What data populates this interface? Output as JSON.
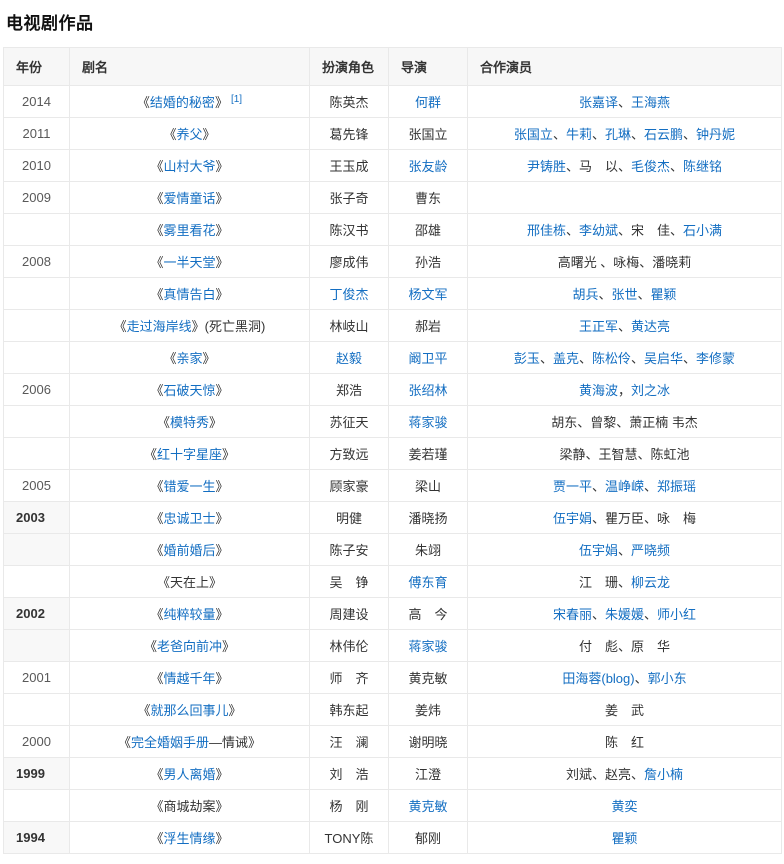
{
  "page_title": "电视剧作品",
  "link_color": "#136ec2",
  "table": {
    "headers": [
      "年份",
      "剧名",
      "扮演角色",
      "导演",
      "合作演员"
    ],
    "rows": [
      {
        "year": {
          "t": "2014",
          "hdr": false
        },
        "title": [
          {
            "t": "《"
          },
          {
            "t": "结婚的秘密",
            "l": 1
          },
          {
            "t": "》"
          },
          {
            "t": "[1]",
            "l": 1,
            "s": 1
          }
        ],
        "role": [
          {
            "t": "陈英杰"
          }
        ],
        "director": [
          {
            "t": "何群",
            "l": 1
          }
        ],
        "costars": [
          {
            "t": "张嘉译",
            "l": 1
          },
          {
            "t": "、"
          },
          {
            "t": "王海燕",
            "l": 1
          }
        ]
      },
      {
        "year": {
          "t": "2011",
          "hdr": false
        },
        "title": [
          {
            "t": "《"
          },
          {
            "t": "养父",
            "l": 1
          },
          {
            "t": "》"
          }
        ],
        "role": [
          {
            "t": "葛先锋"
          }
        ],
        "director": [
          {
            "t": "张国立"
          }
        ],
        "costars": [
          {
            "t": "张国立",
            "l": 1
          },
          {
            "t": "、"
          },
          {
            "t": "牛莉",
            "l": 1
          },
          {
            "t": "、"
          },
          {
            "t": "孔琳",
            "l": 1
          },
          {
            "t": "、"
          },
          {
            "t": "石云鹏",
            "l": 1
          },
          {
            "t": "、"
          },
          {
            "t": "钟丹妮",
            "l": 1
          }
        ]
      },
      {
        "year": {
          "t": "2010",
          "hdr": false
        },
        "title": [
          {
            "t": "《"
          },
          {
            "t": "山村大爷",
            "l": 1
          },
          {
            "t": "》"
          }
        ],
        "role": [
          {
            "t": "王玉成"
          }
        ],
        "director": [
          {
            "t": "张友龄",
            "l": 1
          }
        ],
        "costars": [
          {
            "t": "尹铸胜",
            "l": 1
          },
          {
            "t": "、马　以、"
          },
          {
            "t": "毛俊杰",
            "l": 1
          },
          {
            "t": "、"
          },
          {
            "t": "陈继铭",
            "l": 1
          }
        ]
      },
      {
        "year": {
          "t": "2009",
          "hdr": false
        },
        "title": [
          {
            "t": "《"
          },
          {
            "t": "爱情童话",
            "l": 1
          },
          {
            "t": "》"
          }
        ],
        "role": [
          {
            "t": "张子奇"
          }
        ],
        "director": [
          {
            "t": "曹东"
          }
        ],
        "costars": []
      },
      {
        "year": {
          "t": "",
          "hdr": false
        },
        "title": [
          {
            "t": "《"
          },
          {
            "t": "雾里看花",
            "l": 1
          },
          {
            "t": "》"
          }
        ],
        "role": [
          {
            "t": "陈汉书"
          }
        ],
        "director": [
          {
            "t": "邵雄"
          }
        ],
        "costars": [
          {
            "t": "邢佳栋",
            "l": 1
          },
          {
            "t": "、"
          },
          {
            "t": "李幼斌",
            "l": 1
          },
          {
            "t": "、宋　佳、"
          },
          {
            "t": "石小满",
            "l": 1
          }
        ]
      },
      {
        "year": {
          "t": "2008",
          "hdr": false
        },
        "title": [
          {
            "t": "《"
          },
          {
            "t": "一半天堂",
            "l": 1
          },
          {
            "t": "》"
          }
        ],
        "role": [
          {
            "t": "廖成伟"
          }
        ],
        "director": [
          {
            "t": "孙浩"
          }
        ],
        "costars": [
          {
            "t": "高曙光 、咏梅、潘晓莉"
          }
        ]
      },
      {
        "year": {
          "t": "",
          "hdr": false
        },
        "title": [
          {
            "t": "《"
          },
          {
            "t": "真情告白",
            "l": 1
          },
          {
            "t": "》"
          }
        ],
        "role": [
          {
            "t": "丁俊杰",
            "l": 1
          }
        ],
        "director": [
          {
            "t": "杨文军",
            "l": 1
          }
        ],
        "costars": [
          {
            "t": "胡兵",
            "l": 1
          },
          {
            "t": "、"
          },
          {
            "t": "张世",
            "l": 1
          },
          {
            "t": "、"
          },
          {
            "t": "瞿颖",
            "l": 1
          }
        ]
      },
      {
        "year": {
          "t": "",
          "hdr": false
        },
        "title": [
          {
            "t": "《"
          },
          {
            "t": "走过海岸线",
            "l": 1
          },
          {
            "t": "》(死亡黑洞)"
          }
        ],
        "role": [
          {
            "t": "林岐山"
          }
        ],
        "director": [
          {
            "t": "郝岩"
          }
        ],
        "costars": [
          {
            "t": "王正军",
            "l": 1
          },
          {
            "t": "、"
          },
          {
            "t": "黄达亮",
            "l": 1
          }
        ]
      },
      {
        "year": {
          "t": "",
          "hdr": false
        },
        "title": [
          {
            "t": "《"
          },
          {
            "t": "亲家",
            "l": 1
          },
          {
            "t": "》"
          }
        ],
        "role": [
          {
            "t": "赵毅",
            "l": 1
          }
        ],
        "director": [
          {
            "t": "阚卫平",
            "l": 1
          }
        ],
        "costars": [
          {
            "t": "彭玉",
            "l": 1
          },
          {
            "t": "、"
          },
          {
            "t": "盖克",
            "l": 1
          },
          {
            "t": "、"
          },
          {
            "t": "陈松伶",
            "l": 1
          },
          {
            "t": "、"
          },
          {
            "t": "吴启华",
            "l": 1
          },
          {
            "t": "、"
          },
          {
            "t": "李修蒙",
            "l": 1
          }
        ]
      },
      {
        "year": {
          "t": "2006",
          "hdr": false
        },
        "title": [
          {
            "t": "《"
          },
          {
            "t": "石破天惊",
            "l": 1
          },
          {
            "t": "》"
          }
        ],
        "role": [
          {
            "t": "郑浩"
          }
        ],
        "director": [
          {
            "t": "张绍林",
            "l": 1
          }
        ],
        "costars": [
          {
            "t": "黄海波",
            "l": 1
          },
          {
            "t": "，"
          },
          {
            "t": "刘之冰",
            "l": 1
          }
        ]
      },
      {
        "year": {
          "t": "",
          "hdr": false
        },
        "title": [
          {
            "t": "《"
          },
          {
            "t": "模特秀",
            "l": 1
          },
          {
            "t": "》"
          }
        ],
        "role": [
          {
            "t": "苏征天"
          }
        ],
        "director": [
          {
            "t": "蒋家骏",
            "l": 1
          }
        ],
        "costars": [
          {
            "t": "胡东、曾黎、萧正楠 韦杰"
          }
        ]
      },
      {
        "year": {
          "t": "",
          "hdr": false
        },
        "title": [
          {
            "t": "《"
          },
          {
            "t": "红十字星座",
            "l": 1
          },
          {
            "t": "》"
          }
        ],
        "role": [
          {
            "t": "方致远"
          }
        ],
        "director": [
          {
            "t": "姜若瑾"
          }
        ],
        "costars": [
          {
            "t": "梁静、王智慧、陈虹池"
          }
        ]
      },
      {
        "year": {
          "t": "2005",
          "hdr": false
        },
        "title": [
          {
            "t": "《"
          },
          {
            "t": "错爱一生",
            "l": 1
          },
          {
            "t": "》"
          }
        ],
        "role": [
          {
            "t": "顾家豪"
          }
        ],
        "director": [
          {
            "t": "梁山"
          }
        ],
        "costars": [
          {
            "t": "贾一平",
            "l": 1
          },
          {
            "t": "、"
          },
          {
            "t": "温峥嵘",
            "l": 1
          },
          {
            "t": "、"
          },
          {
            "t": "郑振瑶",
            "l": 1
          }
        ]
      },
      {
        "year": {
          "t": "2003",
          "hdr": true
        },
        "title": [
          {
            "t": "《"
          },
          {
            "t": "忠诚卫士",
            "l": 1
          },
          {
            "t": "》"
          }
        ],
        "role": [
          {
            "t": "明健"
          }
        ],
        "director": [
          {
            "t": "潘晓扬"
          }
        ],
        "costars": [
          {
            "t": "伍宇娟",
            "l": 1
          },
          {
            "t": "、瞿万臣、咏　梅"
          }
        ]
      },
      {
        "year": {
          "t": "",
          "hdr": true
        },
        "title": [
          {
            "t": "《"
          },
          {
            "t": "婚前婚后",
            "l": 1
          },
          {
            "t": "》"
          }
        ],
        "role": [
          {
            "t": "陈子安"
          }
        ],
        "director": [
          {
            "t": "朱翊"
          }
        ],
        "costars": [
          {
            "t": "伍宇娟",
            "l": 1
          },
          {
            "t": "、"
          },
          {
            "t": "严晓频",
            "l": 1
          }
        ]
      },
      {
        "year": {
          "t": "",
          "hdr": false
        },
        "title": [
          {
            "t": "《天在上》"
          }
        ],
        "role": [
          {
            "t": "吴　铮"
          }
        ],
        "director": [
          {
            "t": "傅东育",
            "l": 1
          }
        ],
        "costars": [
          {
            "t": "江　珊、"
          },
          {
            "t": "柳云龙",
            "l": 1
          }
        ]
      },
      {
        "year": {
          "t": "2002",
          "hdr": true
        },
        "title": [
          {
            "t": "《"
          },
          {
            "t": "纯粹较量",
            "l": 1
          },
          {
            "t": "》"
          }
        ],
        "role": [
          {
            "t": "周建设"
          }
        ],
        "director": [
          {
            "t": "高　今"
          }
        ],
        "costars": [
          {
            "t": "宋春丽",
            "l": 1
          },
          {
            "t": "、"
          },
          {
            "t": "朱媛媛",
            "l": 1
          },
          {
            "t": "、"
          },
          {
            "t": "师小红",
            "l": 1
          }
        ]
      },
      {
        "year": {
          "t": "",
          "hdr": true
        },
        "title": [
          {
            "t": "《"
          },
          {
            "t": "老爸向前冲",
            "l": 1
          },
          {
            "t": "》"
          }
        ],
        "role": [
          {
            "t": "林伟伦"
          }
        ],
        "director": [
          {
            "t": "蒋家骏",
            "l": 1
          }
        ],
        "costars": [
          {
            "t": "付　彪、原　华"
          }
        ]
      },
      {
        "year": {
          "t": "2001",
          "hdr": false
        },
        "title": [
          {
            "t": "《"
          },
          {
            "t": "情越千年",
            "l": 1
          },
          {
            "t": "》"
          }
        ],
        "role": [
          {
            "t": "师　齐"
          }
        ],
        "director": [
          {
            "t": "黄克敏"
          }
        ],
        "costars": [
          {
            "t": "田海蓉(blog)",
            "l": 1
          },
          {
            "t": "、"
          },
          {
            "t": "郭小东",
            "l": 1
          }
        ]
      },
      {
        "year": {
          "t": "",
          "hdr": false
        },
        "title": [
          {
            "t": "《"
          },
          {
            "t": "就那么回事儿",
            "l": 1
          },
          {
            "t": "》"
          }
        ],
        "role": [
          {
            "t": "韩东起"
          }
        ],
        "director": [
          {
            "t": "姜炜"
          }
        ],
        "costars": [
          {
            "t": "姜　武"
          }
        ]
      },
      {
        "year": {
          "t": "2000",
          "hdr": false
        },
        "title": [
          {
            "t": "《"
          },
          {
            "t": "完全婚姻手册",
            "l": 1
          },
          {
            "t": "—情诫》"
          }
        ],
        "role": [
          {
            "t": "汪　澜"
          }
        ],
        "director": [
          {
            "t": "谢明晓"
          }
        ],
        "costars": [
          {
            "t": "陈　红"
          }
        ]
      },
      {
        "year": {
          "t": "1999",
          "hdr": true
        },
        "title": [
          {
            "t": "《"
          },
          {
            "t": "男人离婚",
            "l": 1
          },
          {
            "t": "》"
          }
        ],
        "role": [
          {
            "t": "刘　浩"
          }
        ],
        "director": [
          {
            "t": "江澄"
          }
        ],
        "costars": [
          {
            "t": "刘斌、赵亮、"
          },
          {
            "t": "詹小楠",
            "l": 1
          }
        ]
      },
      {
        "year": {
          "t": "",
          "hdr": false
        },
        "title": [
          {
            "t": "《商城劫案》"
          }
        ],
        "role": [
          {
            "t": "杨　刚"
          }
        ],
        "director": [
          {
            "t": "黄克敏",
            "l": 1
          }
        ],
        "costars": [
          {
            "t": "黄奕",
            "l": 1
          }
        ]
      },
      {
        "year": {
          "t": "1994",
          "hdr": true
        },
        "title": [
          {
            "t": "《"
          },
          {
            "t": "浮生情缘",
            "l": 1
          },
          {
            "t": "》"
          }
        ],
        "role": [
          {
            "t": "TONY陈"
          }
        ],
        "director": [
          {
            "t": "郁刚"
          }
        ],
        "costars": [
          {
            "t": "瞿颖",
            "l": 1
          }
        ]
      }
    ]
  }
}
